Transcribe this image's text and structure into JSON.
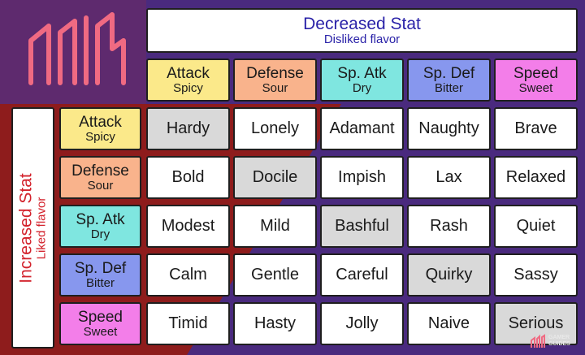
{
  "top_banner": {
    "title": "Decreased Stat",
    "subtitle": "Disliked flavor"
  },
  "side_banner": {
    "title": "Increased Stat",
    "subtitle": "Liked flavor"
  },
  "stats": [
    {
      "stat": "Attack",
      "flavor": "Spicy",
      "color": "#fbe98a"
    },
    {
      "stat": "Defense",
      "flavor": "Sour",
      "color": "#f9b38c"
    },
    {
      "stat": "Sp. Atk",
      "flavor": "Dry",
      "color": "#7fe6e0"
    },
    {
      "stat": "Sp. Def",
      "flavor": "Bitter",
      "color": "#8797ee"
    },
    {
      "stat": "Speed",
      "flavor": "Sweet",
      "color": "#f37ee9"
    }
  ],
  "natures": [
    [
      "Hardy",
      "Lonely",
      "Adamant",
      "Naughty",
      "Brave"
    ],
    [
      "Bold",
      "Docile",
      "Impish",
      "Lax",
      "Relaxed"
    ],
    [
      "Modest",
      "Mild",
      "Bashful",
      "Rash",
      "Quiet"
    ],
    [
      "Calm",
      "Gentle",
      "Careful",
      "Quirky",
      "Sassy"
    ],
    [
      "Timid",
      "Hasty",
      "Jolly",
      "Naive",
      "Serious"
    ]
  ],
  "watermark": {
    "line1": "GAMER",
    "line2": "GUIDES"
  },
  "colors": {
    "purple": "#4a2a7e",
    "red": "#8e1c1c",
    "logo": "#f06a82",
    "cell_neutral": "#d9d9d9"
  }
}
